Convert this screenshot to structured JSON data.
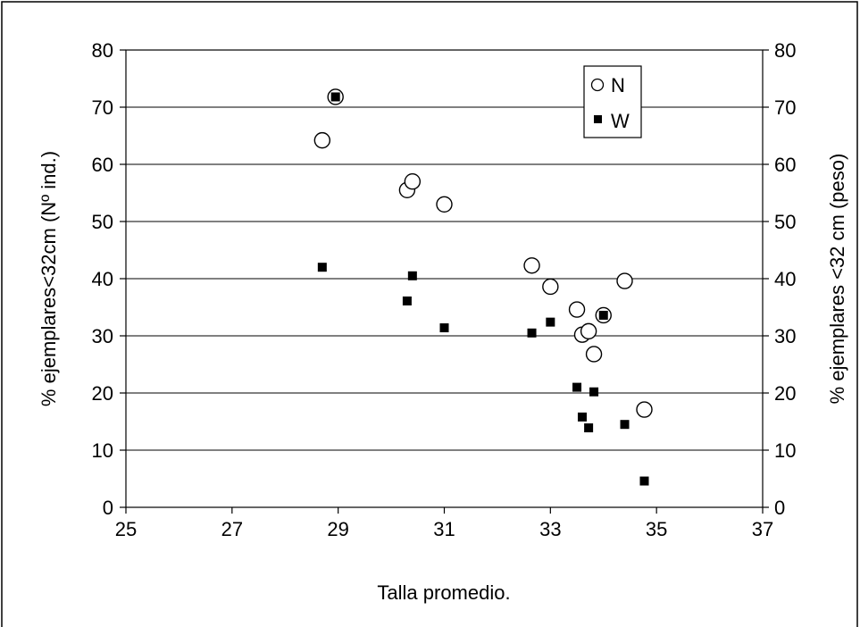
{
  "chart_data": {
    "type": "scatter",
    "xlabel": "Talla promedio.",
    "ylabel_left": "% ejemplares<32cm (Nº ind.)",
    "ylabel_right": "% ejemplares <32 cm (peso)",
    "xlim": [
      25,
      37
    ],
    "ylim": [
      0,
      80
    ],
    "x_ticks": [
      "25",
      "27",
      "29",
      "31",
      "33",
      "35",
      "37"
    ],
    "y_ticks": [
      "0",
      "10",
      "20",
      "30",
      "40",
      "50",
      "60",
      "70",
      "80"
    ],
    "grid": "horizontal",
    "legend_position": "top-right",
    "series": [
      {
        "name": "N",
        "marker": "open-circle",
        "points": [
          {
            "x": 28.7,
            "y": 64.2
          },
          {
            "x": 28.95,
            "y": 71.8
          },
          {
            "x": 30.3,
            "y": 55.5
          },
          {
            "x": 30.4,
            "y": 57.0
          },
          {
            "x": 31.0,
            "y": 53.0
          },
          {
            "x": 32.65,
            "y": 42.3
          },
          {
            "x": 33.0,
            "y": 38.6
          },
          {
            "x": 33.5,
            "y": 34.6
          },
          {
            "x": 33.6,
            "y": 30.2
          },
          {
            "x": 33.72,
            "y": 30.8
          },
          {
            "x": 33.82,
            "y": 26.8
          },
          {
            "x": 34.0,
            "y": 33.6
          },
          {
            "x": 34.4,
            "y": 39.6
          },
          {
            "x": 34.77,
            "y": 17.1
          }
        ]
      },
      {
        "name": "W",
        "marker": "filled-square",
        "points": [
          {
            "x": 28.7,
            "y": 42.0
          },
          {
            "x": 28.95,
            "y": 71.8
          },
          {
            "x": 30.3,
            "y": 36.1
          },
          {
            "x": 30.4,
            "y": 40.5
          },
          {
            "x": 31.0,
            "y": 31.4
          },
          {
            "x": 32.65,
            "y": 30.5
          },
          {
            "x": 33.0,
            "y": 32.4
          },
          {
            "x": 33.5,
            "y": 21.0
          },
          {
            "x": 33.6,
            "y": 15.8
          },
          {
            "x": 33.72,
            "y": 13.9
          },
          {
            "x": 33.82,
            "y": 20.2
          },
          {
            "x": 34.0,
            "y": 33.6
          },
          {
            "x": 34.4,
            "y": 14.5
          },
          {
            "x": 34.77,
            "y": 4.6
          }
        ]
      }
    ]
  }
}
